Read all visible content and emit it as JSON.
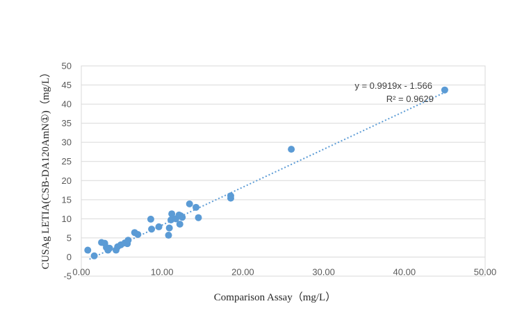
{
  "chart_data": {
    "type": "scatter",
    "xlabel": "Comparison Assay（mg/L）",
    "ylabel": "CUSAg LETIA(CSB-DA120AmN①)（mg/L）",
    "xlim": [
      0,
      50
    ],
    "ylim": [
      -5,
      50
    ],
    "x_ticks": [
      "0.00",
      "10.00",
      "20.00",
      "30.00",
      "40.00",
      "50.00"
    ],
    "y_ticks": [
      "-5",
      "0",
      "5",
      "10",
      "15",
      "20",
      "25",
      "30",
      "35",
      "40",
      "45",
      "50"
    ],
    "x_tick_values": [
      0,
      10,
      20,
      30,
      40,
      50
    ],
    "y_tick_values": [
      -5,
      0,
      5,
      10,
      15,
      20,
      25,
      30,
      35,
      40,
      45,
      50
    ],
    "gridlines": "horizontal",
    "marker_color": "#5b9bd5",
    "trendline": {
      "type": "linear",
      "slope": 0.9919,
      "intercept": -1.566,
      "style": "dotted",
      "equation_label": "y = 0.9919x - 1.566",
      "r2_label": "R² = 0.9629"
    },
    "points": [
      {
        "x": 0.8,
        "y": 1.8
      },
      {
        "x": 1.6,
        "y": 0.3
      },
      {
        "x": 2.5,
        "y": 3.8
      },
      {
        "x": 2.9,
        "y": 3.6
      },
      {
        "x": 3.1,
        "y": 2.5
      },
      {
        "x": 3.3,
        "y": 1.8
      },
      {
        "x": 3.5,
        "y": 2.3
      },
      {
        "x": 4.3,
        "y": 1.8
      },
      {
        "x": 4.5,
        "y": 2.7
      },
      {
        "x": 4.9,
        "y": 3.2
      },
      {
        "x": 5.4,
        "y": 3.7
      },
      {
        "x": 5.7,
        "y": 3.5
      },
      {
        "x": 5.8,
        "y": 4.4
      },
      {
        "x": 6.6,
        "y": 6.4
      },
      {
        "x": 7.0,
        "y": 5.9
      },
      {
        "x": 8.6,
        "y": 9.9
      },
      {
        "x": 8.7,
        "y": 7.3
      },
      {
        "x": 9.6,
        "y": 7.9
      },
      {
        "x": 10.8,
        "y": 5.7
      },
      {
        "x": 10.9,
        "y": 7.6
      },
      {
        "x": 11.1,
        "y": 9.7
      },
      {
        "x": 11.2,
        "y": 11.3
      },
      {
        "x": 11.7,
        "y": 10.0
      },
      {
        "x": 12.1,
        "y": 11.0
      },
      {
        "x": 12.2,
        "y": 8.6
      },
      {
        "x": 12.3,
        "y": 10.8
      },
      {
        "x": 12.5,
        "y": 10.4
      },
      {
        "x": 13.4,
        "y": 13.9
      },
      {
        "x": 14.2,
        "y": 13.0
      },
      {
        "x": 14.5,
        "y": 10.3
      },
      {
        "x": 18.5,
        "y": 15.4
      },
      {
        "x": 18.5,
        "y": 16.0
      },
      {
        "x": 26.0,
        "y": 28.2
      },
      {
        "x": 45.0,
        "y": 43.7
      }
    ]
  }
}
